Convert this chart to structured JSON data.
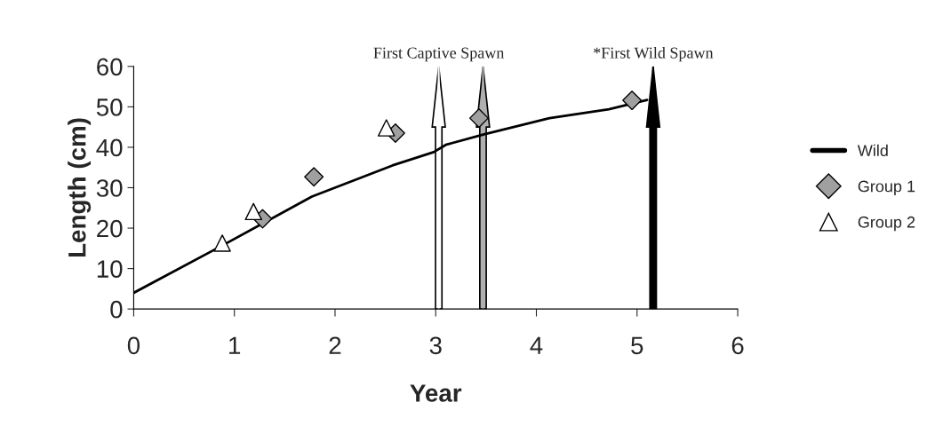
{
  "chart_data": {
    "type": "line",
    "xlabel": "Year",
    "ylabel": "Length (cm)",
    "xlim": [
      0,
      6
    ],
    "xticks": [
      0,
      1,
      2,
      3,
      4,
      5,
      6
    ],
    "ylim": [
      0,
      60
    ],
    "yticks": [
      0,
      10,
      20,
      30,
      40,
      50,
      60
    ],
    "grid": false,
    "legend": "right",
    "series": [
      {
        "name": "Wild",
        "type": "line",
        "color": "#000000",
        "marker": "none",
        "line_style": "solid",
        "x": [
          0,
          0.88,
          1.77,
          2.57,
          2.98,
          3.1,
          3.48,
          4.13,
          4.72,
          5.1
        ],
        "values": [
          4.0,
          15.7,
          27.8,
          35.5,
          38.8,
          40.6,
          43.2,
          47.2,
          49.4,
          51.7
        ]
      },
      {
        "name": "Group 1",
        "type": "scatter",
        "color": "#a0a0a0",
        "marker": "diamond",
        "x": [
          1.28,
          1.79,
          2.6,
          3.43,
          4.95
        ],
        "values": [
          22.3,
          32.7,
          43.5,
          47.2,
          51.6
        ]
      },
      {
        "name": "Group 2",
        "type": "scatter",
        "color": "#ffffff",
        "marker": "triangle",
        "x": [
          0.88,
          1.19,
          2.51
        ],
        "values": [
          16.3,
          24.1,
          44.8
        ]
      }
    ],
    "ref_lines": [
      {
        "axis": "x",
        "value": 3.03,
        "label": "First Captive Spawn",
        "color": "#ffffff"
      },
      {
        "axis": "x",
        "value": 3.47,
        "label": null,
        "color": "#b0b0b0"
      },
      {
        "axis": "x",
        "value": 5.16,
        "label": "*First Wild Spawn",
        "color": "#000000"
      }
    ]
  }
}
